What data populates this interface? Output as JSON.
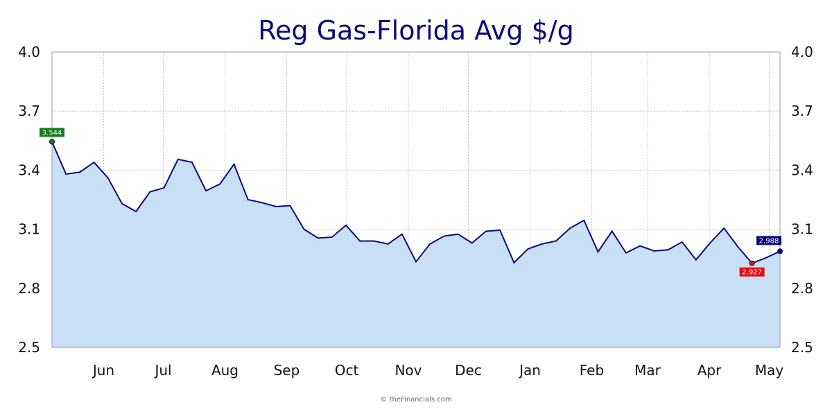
{
  "chart_data": {
    "type": "area",
    "title": "Reg Gas-Florida Avg $/g",
    "xlabel": "",
    "ylabel": "",
    "ylim": [
      2.5,
      4.0
    ],
    "yticks": [
      "2.5",
      "2.8",
      "3.1",
      "3.4",
      "3.7",
      "4.0"
    ],
    "xticks": [
      "Jun",
      "Jul",
      "Aug",
      "Sep",
      "Oct",
      "Nov",
      "Dec",
      "Jan",
      "Feb",
      "Mar",
      "Apr",
      "May"
    ],
    "grid": true,
    "legend": "none",
    "series": [
      {
        "values": [
          3.544,
          3.38,
          3.39,
          3.44,
          3.36,
          3.23,
          3.19,
          3.29,
          3.31,
          3.455,
          3.44,
          3.295,
          3.33,
          3.43,
          3.25,
          3.235,
          3.215,
          3.22,
          3.1,
          3.055,
          3.06,
          3.12,
          3.04,
          3.04,
          3.025,
          3.075,
          2.935,
          3.025,
          3.065,
          3.075,
          3.03,
          3.09,
          3.095,
          2.93,
          3.0,
          3.025,
          3.04,
          3.105,
          3.145,
          2.985,
          3.09,
          2.98,
          3.015,
          2.99,
          2.995,
          3.035,
          2.945,
          3.03,
          3.105,
          3.01,
          2.927,
          2.955,
          2.988
        ]
      }
    ],
    "callouts": {
      "high": "3.544",
      "low": "2.927",
      "last": "2.988"
    }
  },
  "footer": {
    "credit": "© theFinancials.com"
  },
  "colors": {
    "line": "#0a0a78",
    "area": "#c9dff6",
    "high": "#1a7a1a",
    "low": "#e01010",
    "last": "#0a0a78",
    "grid": "#b5b5b5"
  }
}
